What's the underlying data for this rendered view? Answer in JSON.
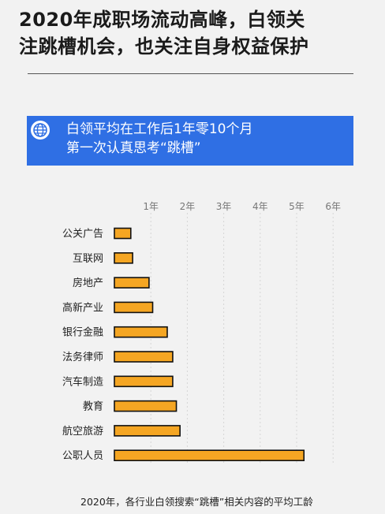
{
  "title": {
    "line1": "2020年成职场流动高峰，白领关",
    "line2": "注跳槽机会，也关注自身权益保护"
  },
  "banner": {
    "line1": "白领平均在工作后1年零10个月",
    "line2": "第一次认真思考“跳槽”",
    "icon": "globe-icon"
  },
  "colors": {
    "bar": "#f5a623",
    "bar_stroke": "#111111",
    "banner": "#2f6fe4",
    "grid": "#d5d5d5"
  },
  "chart_data": {
    "type": "bar",
    "orientation": "horizontal",
    "categories": [
      "公关广告",
      "互联网",
      "房地产",
      "高新产业",
      "银行金融",
      "法务律师",
      "汽车制造",
      "教育",
      "航空旅游",
      "公职人员"
    ],
    "values": [
      0.45,
      0.5,
      0.95,
      1.05,
      1.45,
      1.6,
      1.6,
      1.7,
      1.8,
      5.2
    ],
    "xticks": [
      "1年",
      "2年",
      "3年",
      "4年",
      "5年",
      "6年"
    ],
    "xlim": [
      0,
      6.5
    ],
    "grid": true
  },
  "caption": "2020年，各行业白领搜索“跳槽”相关内容的平均工龄"
}
